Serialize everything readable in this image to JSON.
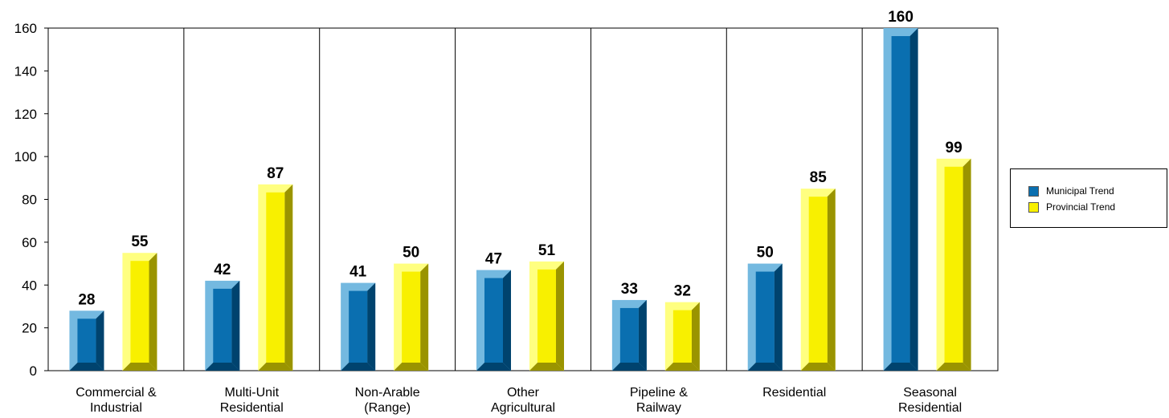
{
  "chart_data": {
    "type": "bar",
    "categories": [
      [
        "Commercial &",
        "Industrial"
      ],
      [
        "Multi-Unit",
        "Residential"
      ],
      [
        "Non-Arable",
        "(Range)"
      ],
      [
        "Other",
        "Agricultural"
      ],
      [
        "Pipeline &",
        "Railway"
      ],
      [
        "Residential"
      ],
      [
        "Seasonal",
        "Residential"
      ]
    ],
    "series": [
      {
        "name": "Municipal Trend",
        "values": [
          28,
          42,
          41,
          47,
          33,
          50,
          160
        ],
        "color": "#0a6fb0",
        "light": "#74b9e0",
        "dark": "#00436e"
      },
      {
        "name": "Provincial Trend",
        "values": [
          55,
          87,
          50,
          51,
          32,
          85,
          99
        ],
        "color": "#f8f000",
        "light": "#ffff80",
        "dark": "#9a9400"
      }
    ],
    "ylim": [
      0,
      160
    ],
    "yticks": [
      0,
      20,
      40,
      60,
      80,
      100,
      120,
      140,
      160
    ],
    "grid": false,
    "legend": "right"
  },
  "legend": {
    "items": [
      {
        "label": "Municipal Trend",
        "color": "#0a6fb0"
      },
      {
        "label": "Provincial Trend",
        "color": "#f8f000"
      }
    ]
  }
}
